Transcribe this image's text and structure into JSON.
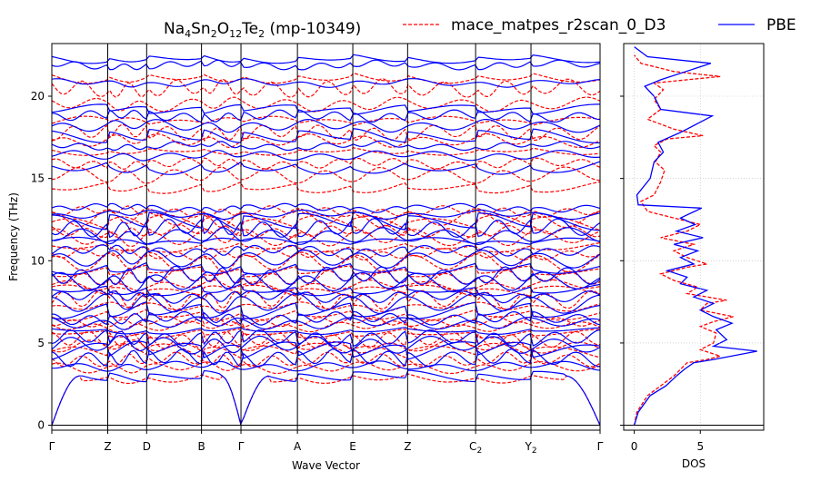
{
  "chart_data": [
    {
      "type": "line",
      "title_main": "Na",
      "title_parts": [
        {
          "t": "Na",
          "sub": false
        },
        {
          "t": "4",
          "sub": true
        },
        {
          "t": "Sn",
          "sub": false
        },
        {
          "t": "2",
          "sub": true
        },
        {
          "t": "O",
          "sub": false
        },
        {
          "t": "12",
          "sub": true
        },
        {
          "t": "Te",
          "sub": false
        },
        {
          "t": "2",
          "sub": true
        },
        {
          "t": " (mp-10349)",
          "sub": false
        }
      ],
      "xlabel": "Wave Vector",
      "ylabel": "Frequency (THz)",
      "ylim": [
        -0.3,
        23.2
      ],
      "yticks": [
        0,
        5,
        10,
        15,
        20
      ],
      "kpoints": [
        {
          "label": "Γ",
          "sub": "",
          "pos": 0.0
        },
        {
          "label": "Z",
          "sub": "",
          "pos": 0.102
        },
        {
          "label": "D",
          "sub": "",
          "pos": 0.173
        },
        {
          "label": "B",
          "sub": "",
          "pos": 0.273
        },
        {
          "label": "Γ",
          "sub": "",
          "pos": 0.345
        },
        {
          "label": "A",
          "sub": "",
          "pos": 0.448
        },
        {
          "label": "E",
          "sub": "",
          "pos": 0.549
        },
        {
          "label": "Z",
          "sub": "",
          "pos": 0.649
        },
        {
          "label": "C",
          "sub": "2",
          "pos": 0.773
        },
        {
          "label": "Y",
          "sub": "2",
          "pos": 0.874
        },
        {
          "label": "Γ",
          "sub": "",
          "pos": 1.0
        }
      ],
      "series": [
        {
          "name": "mace_matpes_r2scan_0_D3",
          "color": "#ff0000",
          "style": "dashed",
          "band_centers": [
            3.0,
            3.5,
            4.0,
            4.4,
            4.8,
            5.2,
            5.6,
            6.0,
            6.3,
            6.8,
            7.2,
            7.6,
            8.1,
            8.5,
            9.0,
            9.4,
            9.9,
            10.4,
            10.9,
            11.4,
            11.8,
            12.2,
            12.6,
            13.0,
            14.5,
            15.2,
            15.9,
            16.7,
            17.3,
            17.8,
            18.4,
            19.5,
            20.5,
            21.2
          ]
        },
        {
          "name": "PBE",
          "color": "#0000ff",
          "style": "solid",
          "band_centers": [
            3.0,
            3.6,
            4.1,
            4.5,
            4.9,
            5.3,
            5.8,
            6.2,
            6.5,
            7.0,
            7.4,
            7.8,
            8.3,
            8.7,
            9.1,
            9.6,
            10.1,
            10.6,
            11.1,
            11.5,
            12.0,
            12.4,
            12.8,
            13.2,
            15.8,
            16.4,
            17.0,
            17.6,
            18.2,
            18.8,
            19.2,
            20.8,
            21.9,
            22.3
          ]
        }
      ]
    },
    {
      "type": "line",
      "xlabel": "DOS",
      "xlim": [
        -0.8,
        9.8
      ],
      "xticks": [
        0,
        5
      ],
      "series": [
        {
          "name": "mace_matpes_r2scan_0_D3",
          "color": "#ff0000",
          "style": "dashed",
          "points": [
            [
              0,
              0
            ],
            [
              0.2,
              0.8
            ],
            [
              1.0,
              1.8
            ],
            [
              2.0,
              2.4
            ],
            [
              3.0,
              3.0
            ],
            [
              3.5,
              3.4
            ],
            [
              4.0,
              3.8
            ],
            [
              5.5,
              4.0
            ],
            [
              6.5,
              4.2
            ],
            [
              5.0,
              4.6
            ],
            [
              6.0,
              5.0
            ],
            [
              6.2,
              5.6
            ],
            [
              5.0,
              6.0
            ],
            [
              6.0,
              6.3
            ],
            [
              7.5,
              6.6
            ],
            [
              5.0,
              7.0
            ],
            [
              5.5,
              7.4
            ],
            [
              7.0,
              7.6
            ],
            [
              4.0,
              8.0
            ],
            [
              4.8,
              8.4
            ],
            [
              3.0,
              8.8
            ],
            [
              2.0,
              9.2
            ],
            [
              4.0,
              9.6
            ],
            [
              5.5,
              9.8
            ],
            [
              4.0,
              10.2
            ],
            [
              3.0,
              10.6
            ],
            [
              4.5,
              11.0
            ],
            [
              2.0,
              11.4
            ],
            [
              4.0,
              11.8
            ],
            [
              5.0,
              12.2
            ],
            [
              3.0,
              12.6
            ],
            [
              1.0,
              13.0
            ],
            [
              0.5,
              13.6
            ],
            [
              1.5,
              14.0
            ],
            [
              2.0,
              14.8
            ],
            [
              2.3,
              15.5
            ],
            [
              1.6,
              16.0
            ],
            [
              2.0,
              16.6
            ],
            [
              1.5,
              17.0
            ],
            [
              2.5,
              17.4
            ],
            [
              5.2,
              17.6
            ],
            [
              3.0,
              18.0
            ],
            [
              1.0,
              18.6
            ],
            [
              2.0,
              19.2
            ],
            [
              1.5,
              19.8
            ],
            [
              2.2,
              20.4
            ],
            [
              1.5,
              20.8
            ],
            [
              6.5,
              21.2
            ],
            [
              3.0,
              21.5
            ],
            [
              0.5,
              22.0
            ],
            [
              0,
              22.5
            ]
          ]
        },
        {
          "name": "PBE",
          "color": "#0000ff",
          "style": "solid",
          "points": [
            [
              0,
              0
            ],
            [
              0.3,
              0.8
            ],
            [
              1.2,
              1.8
            ],
            [
              2.4,
              2.4
            ],
            [
              3.2,
              3.0
            ],
            [
              3.8,
              3.4
            ],
            [
              4.5,
              3.8
            ],
            [
              6.0,
              4.0
            ],
            [
              9.3,
              4.5
            ],
            [
              6.0,
              4.8
            ],
            [
              7.0,
              5.2
            ],
            [
              6.2,
              5.8
            ],
            [
              7.4,
              6.2
            ],
            [
              6.0,
              6.6
            ],
            [
              5.0,
              7.0
            ],
            [
              6.0,
              7.4
            ],
            [
              4.5,
              7.8
            ],
            [
              5.5,
              8.2
            ],
            [
              3.5,
              8.6
            ],
            [
              4.0,
              9.0
            ],
            [
              2.5,
              9.4
            ],
            [
              4.5,
              9.8
            ],
            [
              3.5,
              10.2
            ],
            [
              4.8,
              10.6
            ],
            [
              3.0,
              11.0
            ],
            [
              5.2,
              11.4
            ],
            [
              3.2,
              11.8
            ],
            [
              4.6,
              12.2
            ],
            [
              3.5,
              12.6
            ],
            [
              5.1,
              13.2
            ],
            [
              0.3,
              13.4
            ],
            [
              0.2,
              14.0
            ],
            [
              1.2,
              15.0
            ],
            [
              1.5,
              16.0
            ],
            [
              2.2,
              16.6
            ],
            [
              1.8,
              17.2
            ],
            [
              3.5,
              17.8
            ],
            [
              5.9,
              18.8
            ],
            [
              2.0,
              19.2
            ],
            [
              1.5,
              20.0
            ],
            [
              0.8,
              20.6
            ],
            [
              2.0,
              21.0
            ],
            [
              5.8,
              22.0
            ],
            [
              1.0,
              22.4
            ],
            [
              0,
              23.0
            ]
          ]
        }
      ]
    }
  ],
  "legend": {
    "items": [
      {
        "label": "mace_matpes_r2scan_0_D3",
        "color": "#ff0000",
        "style": "dashed"
      },
      {
        "label": "PBE",
        "color": "#0000ff",
        "style": "solid"
      }
    ]
  }
}
